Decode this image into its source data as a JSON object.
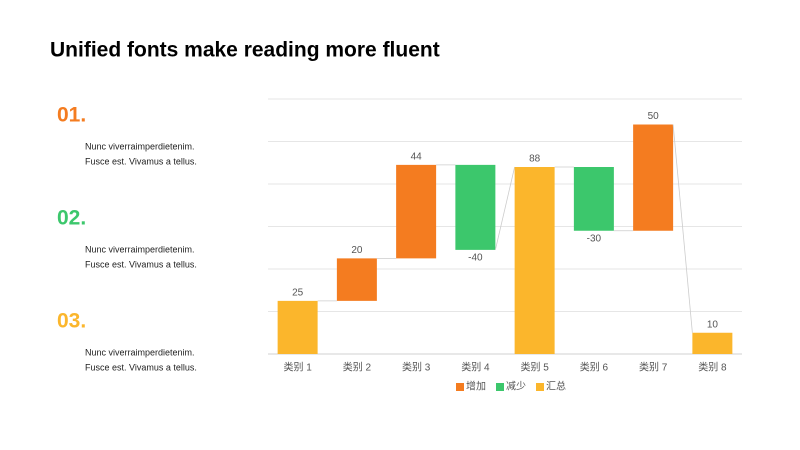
{
  "header": {
    "title": "Unified fonts make reading more fluent"
  },
  "items": [
    {
      "number": "01.",
      "color": "#f47c20",
      "lines": [
        "Nunc viverraimperdietenim.",
        "Fusce est. Vivamus a tellus."
      ]
    },
    {
      "number": "02.",
      "color": "#3cc76c",
      "lines": [
        "Nunc viverraimperdietenim.",
        "Fusce est. Vivamus a tellus."
      ]
    },
    {
      "number": "03.",
      "color": "#fbb62c",
      "lines": [
        "Nunc viverraimperdietenim.",
        "Fusce est. Vivamus a tellus."
      ]
    }
  ],
  "chart_data": {
    "type": "waterfall",
    "categories": [
      "类别 1",
      "类别 2",
      "类别 3",
      "类别 4",
      "类别 5",
      "类别 6",
      "类别 7",
      "类别 8"
    ],
    "series": [
      {
        "name": "增加",
        "color": "#f47c20",
        "values": [
          null,
          20,
          44,
          null,
          null,
          null,
          50,
          null
        ]
      },
      {
        "name": "减少",
        "color": "#3cc76c",
        "values": [
          null,
          null,
          null,
          -40,
          null,
          -30,
          null,
          null
        ]
      },
      {
        "name": "汇总",
        "color": "#fbb62c",
        "values": [
          25,
          null,
          null,
          null,
          88,
          null,
          null,
          10
        ],
        "total": true
      }
    ],
    "ylim": [
      0,
      120
    ],
    "yticks": [
      0,
      20,
      40,
      60,
      80,
      100,
      120
    ],
    "grid": true,
    "legend": "bottom"
  }
}
